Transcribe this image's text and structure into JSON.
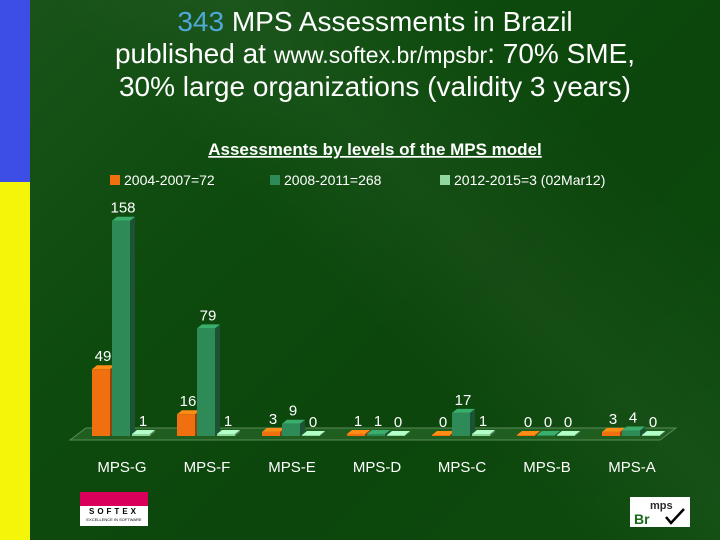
{
  "slide": {
    "title_prefix": "343",
    "title_rest": "MPS Assessments in Brazil",
    "line2_start": "published at ",
    "line2_url": "www.softex.br/mpsbr",
    "line2_end": ": 70% SME,",
    "line3": "30% large organizations (validity 3 years)"
  },
  "colors": {
    "accent_blue": "#3c4ee6",
    "accent_yellow": "#f5f50a",
    "background": "#0d4a0d",
    "title_highlight": "#4ea8d8",
    "series": [
      "#f07010",
      "#2e8b57",
      "#8fd8a0"
    ]
  },
  "chart_data": {
    "type": "bar",
    "title": "Assessments by levels of the MPS model",
    "categories": [
      "MPS-G",
      "MPS-F",
      "MPS-E",
      "MPS-D",
      "MPS-C",
      "MPS-B",
      "MPS-A"
    ],
    "series": [
      {
        "name": "2004-2007=72",
        "values": [
          49,
          16,
          3,
          1,
          0,
          0,
          3
        ]
      },
      {
        "name": "2008-2011=268",
        "values": [
          158,
          79,
          9,
          1,
          17,
          0,
          4
        ]
      },
      {
        "name": "2012-2015=3 (02Mar12)",
        "values": [
          1,
          1,
          0,
          0,
          1,
          0,
          0
        ]
      }
    ],
    "ylim": [
      0,
      160
    ],
    "grid": false,
    "legend": "top",
    "style": "3d"
  },
  "logos": {
    "softex_word": "SOFTEX",
    "softex_sub": "EXCELLENCE IN SOFTWARE",
    "mps_word": "mps",
    "mps_sub": "Br"
  }
}
